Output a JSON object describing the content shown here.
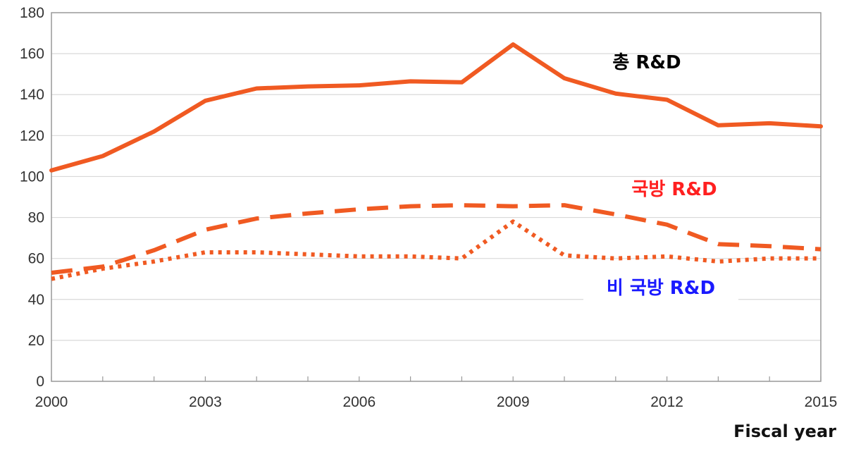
{
  "chart_data": {
    "type": "line",
    "title": "",
    "xlabel": "Fiscal year",
    "ylabel": "",
    "x": [
      2000,
      2001,
      2002,
      2003,
      2004,
      2005,
      2006,
      2007,
      2008,
      2009,
      2010,
      2011,
      2012,
      2013,
      2014,
      2015
    ],
    "xlim": [
      2000,
      2015
    ],
    "ylim": [
      0,
      180
    ],
    "xticks": [
      "2000",
      "2003",
      "2006",
      "2009",
      "2012",
      "2015"
    ],
    "yticks": [
      "0",
      "20",
      "40",
      "60",
      "80",
      "100",
      "120",
      "140",
      "160",
      "180"
    ],
    "grid": "horizontal",
    "series": [
      {
        "name": "총 R&D",
        "style": "solid",
        "color": "#f05a22",
        "label_color": "#000000",
        "values": [
          103,
          110,
          122,
          137,
          143,
          144,
          144.5,
          146.5,
          146,
          164.5,
          148,
          140.5,
          137.5,
          125,
          126,
          124.5
        ]
      },
      {
        "name": "국방 R&D",
        "style": "dashed",
        "color": "#f05a22",
        "label_color": "#ff2020",
        "values": [
          53,
          56,
          64,
          74,
          79.5,
          82,
          84,
          85.5,
          86,
          85.5,
          86,
          81.5,
          76.5,
          67,
          66,
          64.5
        ]
      },
      {
        "name": "비 국방 R&D",
        "style": "dotted",
        "color": "#f05a22",
        "label_color": "#1a1aff",
        "values": [
          50,
          55,
          58.5,
          63,
          63,
          62,
          61,
          61,
          60,
          78,
          61.5,
          60,
          61,
          58.5,
          60,
          60
        ]
      }
    ]
  }
}
